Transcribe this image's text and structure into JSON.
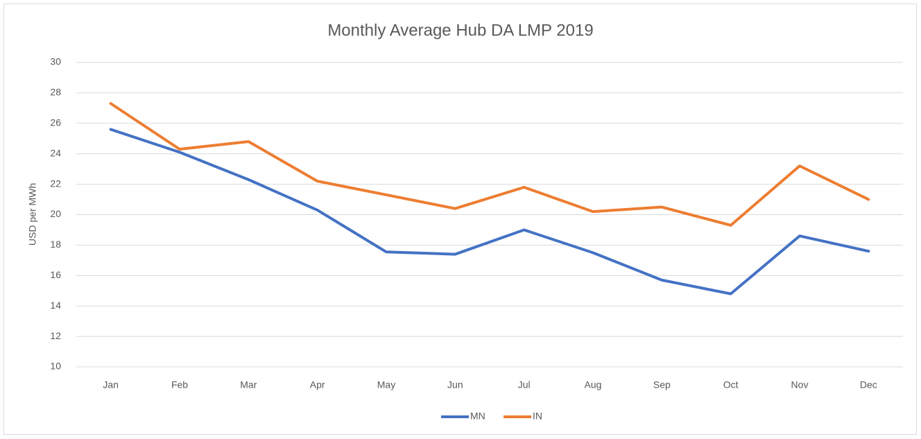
{
  "chart_data": {
    "type": "line",
    "title": "Monthly Average Hub DA LMP 2019",
    "y_label": "USD per MWh",
    "categories": [
      "Jan",
      "Feb",
      "Mar",
      "Apr",
      "May",
      "Jun",
      "Jul",
      "Aug",
      "Sep",
      "Oct",
      "Nov",
      "Dec"
    ],
    "series": [
      {
        "name": "MN",
        "color": "#4472c4",
        "values": [
          25.6,
          24.1,
          22.3,
          20.3,
          17.55,
          17.4,
          19.0,
          17.5,
          15.7,
          14.8,
          18.6,
          17.6
        ]
      },
      {
        "name": "IN",
        "color": "#ed7d31",
        "values": [
          27.3,
          24.3,
          24.8,
          22.2,
          21.3,
          20.4,
          21.8,
          20.2,
          20.5,
          19.3,
          23.2,
          21.0
        ]
      }
    ],
    "ylim": [
      10,
      30
    ],
    "yticks": [
      10,
      12,
      14,
      16,
      18,
      20,
      22,
      24,
      26,
      28,
      30
    ],
    "grid": true,
    "legend": "bottom"
  }
}
